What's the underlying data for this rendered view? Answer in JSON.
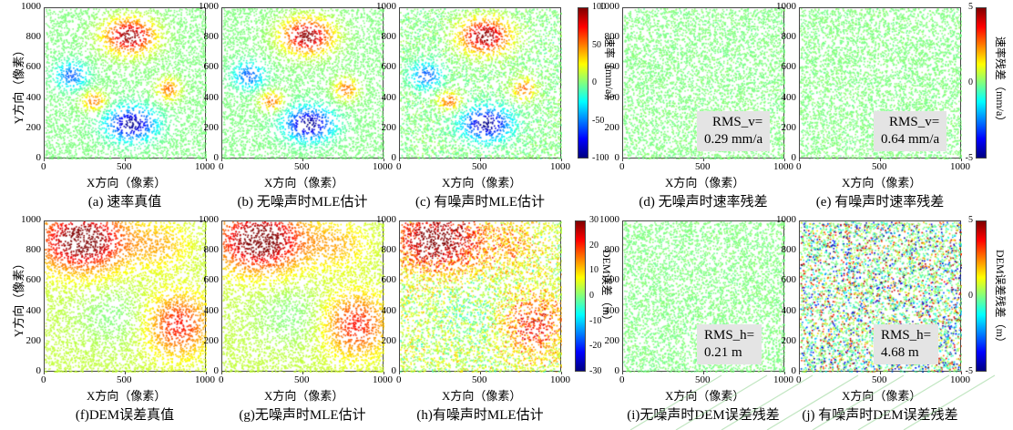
{
  "figure": {
    "x_axis_label": "X方向（像素）",
    "y_axis_label": "Y方向（像素）",
    "x_ticks": [
      "0",
      "500",
      "1000"
    ],
    "y_ticks": [
      "0",
      "200",
      "400",
      "600",
      "800",
      "1000"
    ]
  },
  "colorbars": [
    {
      "id": "velocity",
      "label": "速率（mm/a）",
      "ticks": [
        "100",
        "50",
        "0",
        "-50",
        "-100"
      ]
    },
    {
      "id": "velocity-residual",
      "label": "速率残差（mm/a）",
      "ticks": [
        "5",
        "0",
        "-5"
      ]
    },
    {
      "id": "dem",
      "label": "DEM误差（m）",
      "ticks": [
        "30",
        "20",
        "10",
        "0",
        "-10",
        "-20",
        "-30"
      ]
    },
    {
      "id": "dem-residual",
      "label": "DEM误差残差（m）",
      "ticks": [
        "5",
        "0",
        "-5"
      ]
    }
  ],
  "panels": [
    {
      "id": "a",
      "caption": "(a) 速率真值",
      "rms": []
    },
    {
      "id": "b",
      "caption": "(b) 无噪声时MLE估计",
      "rms": []
    },
    {
      "id": "c",
      "caption": "(c) 有噪声时MLE估计",
      "rms": []
    },
    {
      "id": "d",
      "caption": "(d) 无噪声时速率残差",
      "rms": [
        "RMS_v=",
        "0.29 mm/a"
      ]
    },
    {
      "id": "e",
      "caption": "(e) 有噪声时速率残差",
      "rms": [
        "RMS_v=",
        "0.64 mm/a"
      ]
    },
    {
      "id": "f",
      "caption": "(f)DEM误差真值",
      "rms": []
    },
    {
      "id": "g",
      "caption": "(g)无噪声时MLE估计",
      "rms": []
    },
    {
      "id": "h",
      "caption": "(h)有噪声时MLE估计",
      "rms": []
    },
    {
      "id": "i",
      "caption": "(i)无噪声时DEM误差残差",
      "rms": [
        "RMS_h=",
        "0.21 m"
      ]
    },
    {
      "id": "j",
      "caption": "(j) 有噪声时DEM误差残差",
      "rms": [
        "RMS_h=",
        "4.68 m"
      ]
    }
  ],
  "chart_data": [
    {
      "type": "scatter",
      "panel": "a",
      "title": "",
      "xlabel": "X方向（像素）",
      "ylabel": "Y方向（像素）",
      "xlim": [
        0,
        1000
      ],
      "ylim": [
        0,
        1000
      ],
      "color_range": [
        -100,
        100
      ],
      "field": "velocity deformation pattern: highs near (500,820) and (280,380)/(770,480), lows near (530,240) and (150,560)"
    },
    {
      "type": "scatter",
      "panel": "b",
      "title": "",
      "xlabel": "X方向（像素）",
      "ylabel": "Y方向（像素）",
      "xlim": [
        0,
        1000
      ],
      "ylim": [
        0,
        1000
      ],
      "color_range": [
        -100,
        100
      ]
    },
    {
      "type": "scatter",
      "panel": "c",
      "title": "",
      "xlabel": "X方向（像素）",
      "ylabel": "Y方向（像素）",
      "xlim": [
        0,
        1000
      ],
      "ylim": [
        0,
        1000
      ],
      "color_range": [
        -100,
        100
      ]
    },
    {
      "type": "scatter",
      "panel": "d",
      "title": "",
      "xlabel": "X方向（像素）",
      "ylabel": "",
      "xlim": [
        0,
        1000
      ],
      "ylim": [
        0,
        1000
      ],
      "color_range": [
        -5,
        5
      ],
      "rms": "0.29 mm/a"
    },
    {
      "type": "scatter",
      "panel": "e",
      "title": "",
      "xlabel": "X方向（像素）",
      "ylabel": "",
      "xlim": [
        0,
        1000
      ],
      "ylim": [
        0,
        1000
      ],
      "color_range": [
        -5,
        5
      ],
      "rms": "0.64 mm/a"
    },
    {
      "type": "scatter",
      "panel": "f",
      "title": "",
      "xlabel": "X方向（像素）",
      "ylabel": "Y方向（像素）",
      "xlim": [
        0,
        1000
      ],
      "ylim": [
        0,
        1000
      ],
      "color_range": [
        -30,
        30
      ]
    },
    {
      "type": "scatter",
      "panel": "g",
      "title": "",
      "xlabel": "X方向（像素）",
      "ylabel": "Y方向（像素）",
      "xlim": [
        0,
        1000
      ],
      "ylim": [
        0,
        1000
      ],
      "color_range": [
        -30,
        30
      ]
    },
    {
      "type": "scatter",
      "panel": "h",
      "title": "",
      "xlabel": "X方向（像素）",
      "ylabel": "Y方向（像素）",
      "xlim": [
        0,
        1000
      ],
      "ylim": [
        0,
        1000
      ],
      "color_range": [
        -30,
        30
      ]
    },
    {
      "type": "scatter",
      "panel": "i",
      "title": "",
      "xlabel": "X方向（像素）",
      "ylabel": "",
      "xlim": [
        0,
        1000
      ],
      "ylim": [
        0,
        1000
      ],
      "color_range": [
        -5,
        5
      ],
      "rms": "0.21 m"
    },
    {
      "type": "scatter",
      "panel": "j",
      "title": "",
      "xlabel": "X方向（像素）",
      "ylabel": "",
      "xlim": [
        0,
        1000
      ],
      "ylim": [
        0,
        1000
      ],
      "color_range": [
        -5,
        5
      ],
      "rms": "4.68 m"
    }
  ]
}
